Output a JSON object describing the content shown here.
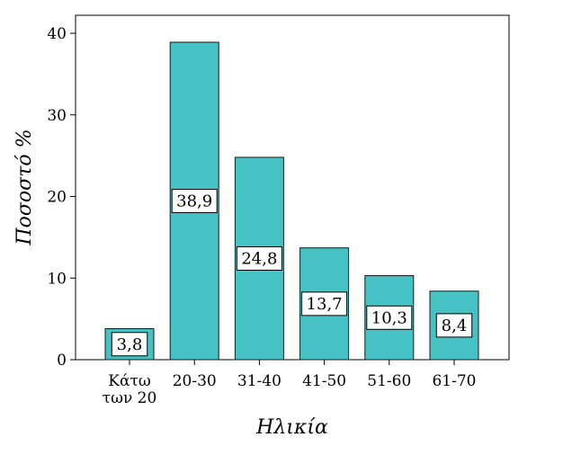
{
  "chart_data": {
    "type": "bar",
    "categories": [
      "Κάτω των 20",
      "20-30",
      "31-40",
      "41-50",
      "51-60",
      "61-70"
    ],
    "category_lines": [
      [
        "Κάτω",
        "των 20"
      ],
      [
        "20-30"
      ],
      [
        "31-40"
      ],
      [
        "41-50"
      ],
      [
        "51-60"
      ],
      [
        "61-70"
      ]
    ],
    "values": [
      3.8,
      38.9,
      24.8,
      13.7,
      10.3,
      8.4
    ],
    "data_labels": [
      "3,8",
      "38,9",
      "24,8",
      "13,7",
      "10,3",
      "8,4"
    ],
    "title": "",
    "xlabel": "Ηλικία",
    "ylabel": "Ποσοστό %",
    "ylim": [
      0,
      40
    ],
    "yticks": [
      0,
      10,
      20,
      30,
      40
    ],
    "grid": false,
    "bar_color": "#46c1c4",
    "bar_edge_color": "#1a1a1a"
  }
}
